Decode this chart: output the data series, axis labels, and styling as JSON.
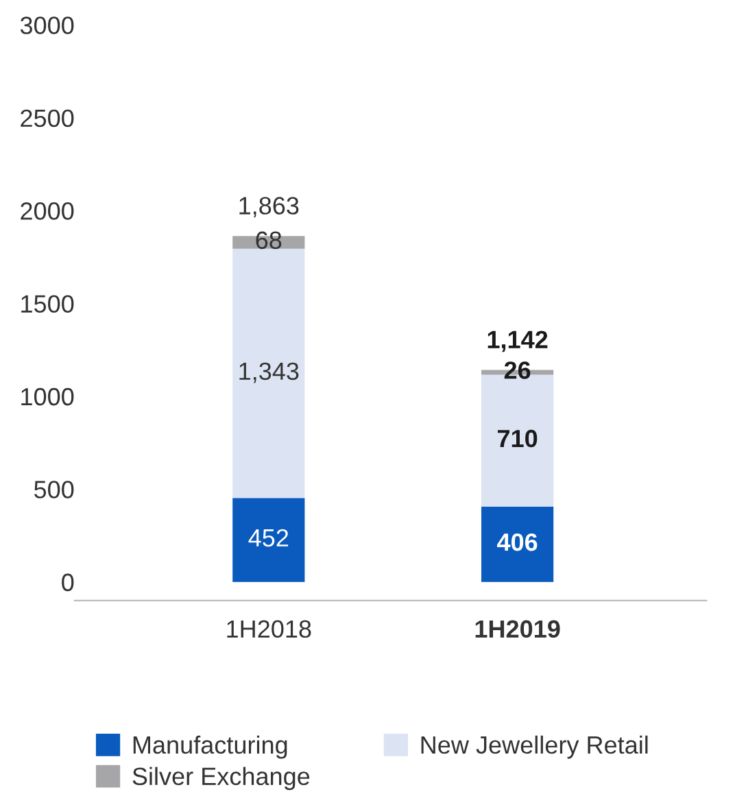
{
  "chart_data": {
    "type": "bar",
    "stacked": true,
    "categories": [
      "1H2018",
      "1H2019"
    ],
    "series": [
      {
        "name": "Manufacturing",
        "color": "#0a5bbd",
        "values": [
          452,
          406
        ],
        "value_labels": [
          "452",
          "406"
        ]
      },
      {
        "name": "New Jewellery Retail",
        "color": "#dce3f3",
        "values": [
          1343,
          710
        ],
        "value_labels": [
          "1,343",
          "710"
        ]
      },
      {
        "name": "Silver Exchange",
        "color": "#a6a6a8",
        "values": [
          68,
          26
        ],
        "value_labels": [
          "68",
          "26"
        ]
      }
    ],
    "totals": [
      "1,863",
      "1,142"
    ],
    "ylim": [
      -100,
      3000
    ],
    "yticks": [
      0,
      500,
      1000,
      1500,
      2000,
      2500,
      3000
    ],
    "grid": false,
    "legend": "bottom"
  }
}
